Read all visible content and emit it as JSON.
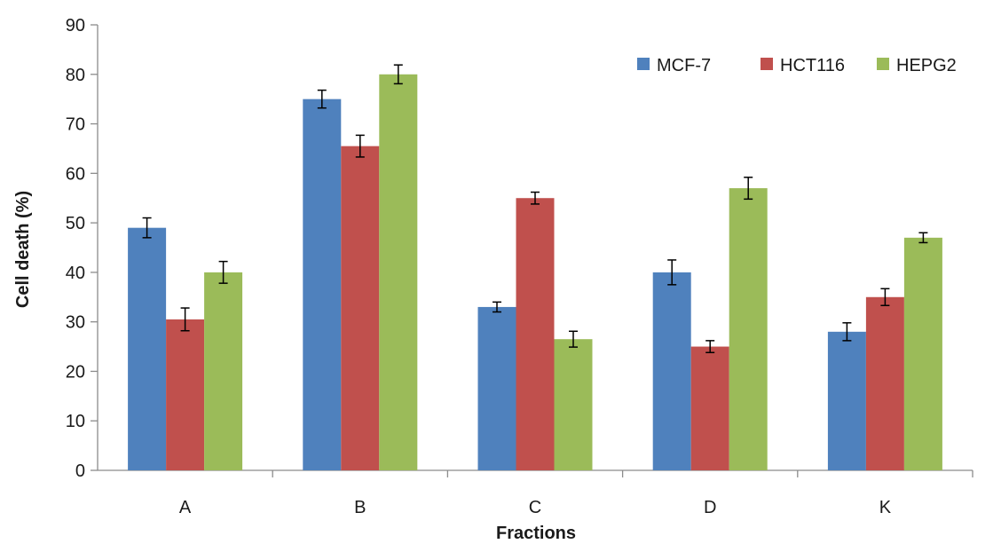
{
  "chart_data": {
    "type": "bar",
    "title": "",
    "xlabel": "Fractions",
    "ylabel": "Cell death (%)",
    "ylim": [
      0,
      90
    ],
    "yticks": [
      0,
      10,
      20,
      30,
      40,
      50,
      60,
      70,
      80,
      90
    ],
    "grid": false,
    "legend_position": "top-right",
    "categories": [
      "A",
      "B",
      "C",
      "D",
      "K"
    ],
    "series": [
      {
        "name": "MCF-7",
        "color": "#4f81bd",
        "values": [
          49,
          75,
          33,
          40,
          28
        ],
        "errors": [
          2,
          1.8,
          1,
          2.5,
          1.8
        ]
      },
      {
        "name": "HCT116",
        "color": "#c0504d",
        "values": [
          30.5,
          65.5,
          55,
          25,
          35
        ],
        "errors": [
          2.3,
          2.2,
          1.2,
          1.2,
          1.7
        ]
      },
      {
        "name": "HEPG2",
        "color": "#9bbb59",
        "values": [
          40,
          80,
          26.5,
          57,
          47
        ],
        "errors": [
          2.2,
          1.9,
          1.6,
          2.2,
          1
        ]
      }
    ]
  }
}
